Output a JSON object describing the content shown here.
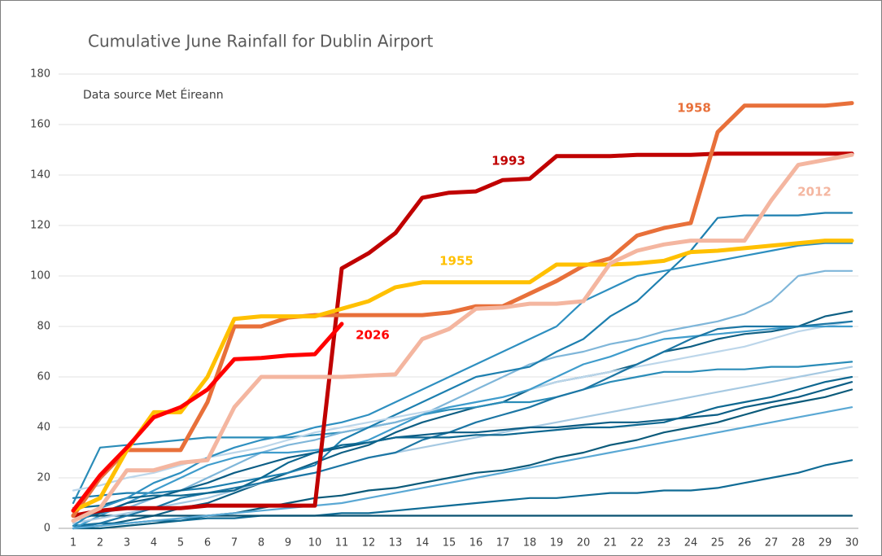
{
  "chart_data": {
    "type": "line",
    "title": "Cumulative June Rainfall for Dublin Airport",
    "annotation": "Data source Met Éireann",
    "x": [
      1,
      2,
      3,
      4,
      5,
      6,
      7,
      8,
      9,
      10,
      11,
      12,
      13,
      14,
      15,
      16,
      17,
      18,
      19,
      20,
      21,
      22,
      23,
      24,
      25,
      26,
      27,
      28,
      29,
      30
    ],
    "xlim": [
      1,
      30
    ],
    "ylim": [
      0,
      180
    ],
    "yticks": [
      0,
      20,
      40,
      60,
      80,
      100,
      120,
      140,
      160,
      180
    ],
    "grid": true,
    "series": [
      {
        "color": "#0e5f84",
        "values": [
          0,
          1,
          3,
          5,
          8,
          10,
          14,
          18,
          22,
          26,
          30,
          33,
          38,
          42,
          45,
          48,
          50,
          55,
          58,
          60,
          62,
          65,
          70,
          72,
          75,
          77,
          78,
          80,
          84,
          86
        ]
      },
      {
        "color": "#2a8cb8",
        "values": [
          10,
          32,
          33,
          34,
          35,
          36,
          36,
          36,
          36,
          37,
          38,
          40,
          42,
          45,
          47,
          48,
          50,
          50,
          52,
          55,
          58,
          60,
          62,
          62,
          63,
          63,
          64,
          64,
          65,
          66
        ]
      },
      {
        "color": "#7fb6d9",
        "values": [
          5,
          6,
          8,
          12,
          15,
          20,
          25,
          30,
          33,
          35,
          38,
          40,
          42,
          45,
          50,
          55,
          60,
          65,
          68,
          70,
          73,
          75,
          78,
          80,
          82,
          85,
          90,
          100,
          102,
          102
        ]
      },
      {
        "color": "#0a5a7a",
        "values": [
          0,
          0,
          1,
          2,
          3,
          5,
          6,
          8,
          10,
          12,
          13,
          15,
          16,
          18,
          20,
          22,
          23,
          25,
          28,
          30,
          33,
          35,
          38,
          40,
          42,
          45,
          48,
          50,
          52,
          55
        ]
      },
      {
        "color": "#1d7faf",
        "values": [
          12,
          13,
          14,
          14,
          15,
          16,
          18,
          20,
          22,
          25,
          35,
          40,
          45,
          50,
          55,
          60,
          62,
          64,
          70,
          75,
          84,
          90,
          100,
          110,
          123,
          124,
          124,
          124,
          125,
          125
        ]
      },
      {
        "color": "#bcd6ea",
        "values": [
          15,
          17,
          20,
          22,
          25,
          28,
          30,
          32,
          35,
          38,
          40,
          42,
          44,
          46,
          48,
          50,
          52,
          55,
          58,
          60,
          62,
          64,
          66,
          68,
          70,
          72,
          75,
          78,
          80,
          82
        ]
      },
      {
        "color": "#0f6b95",
        "values": [
          1,
          2,
          2,
          3,
          3,
          4,
          4,
          5,
          5,
          5,
          6,
          6,
          7,
          8,
          9,
          10,
          11,
          12,
          12,
          13,
          14,
          14,
          15,
          15,
          16,
          18,
          20,
          22,
          25,
          27
        ]
      },
      {
        "color": "#3f9ccc",
        "values": [
          0,
          5,
          10,
          15,
          20,
          25,
          28,
          30,
          30,
          31,
          32,
          35,
          40,
          45,
          48,
          50,
          52,
          55,
          60,
          65,
          68,
          72,
          75,
          76,
          77,
          78,
          79,
          80,
          80,
          80
        ]
      },
      {
        "color": "#085070",
        "values": [
          5,
          5,
          5,
          5,
          5,
          5,
          5,
          5,
          5,
          5,
          5,
          5,
          5,
          5,
          5,
          5,
          5,
          5,
          5,
          5,
          5,
          5,
          5,
          5,
          5,
          5,
          5,
          5,
          5,
          5
        ]
      },
      {
        "color": "#a6c9e2",
        "values": [
          2,
          4,
          6,
          8,
          10,
          12,
          15,
          18,
          20,
          22,
          25,
          28,
          30,
          32,
          34,
          36,
          38,
          40,
          42,
          44,
          46,
          48,
          50,
          52,
          54,
          56,
          58,
          60,
          62,
          64
        ]
      },
      {
        "color": "#1c76a4",
        "values": [
          0,
          2,
          5,
          8,
          12,
          14,
          16,
          18,
          20,
          22,
          25,
          28,
          30,
          35,
          38,
          42,
          45,
          48,
          52,
          55,
          60,
          65,
          70,
          75,
          79,
          80,
          80,
          80,
          81,
          82
        ]
      },
      {
        "color": "#0b5d85",
        "values": [
          3,
          6,
          10,
          12,
          15,
          18,
          22,
          25,
          28,
          30,
          32,
          34,
          36,
          37,
          38,
          38,
          39,
          40,
          40,
          41,
          42,
          42,
          43,
          44,
          45,
          48,
          50,
          52,
          55,
          58
        ]
      },
      {
        "color": "#5aa8d4",
        "values": [
          0,
          1,
          2,
          3,
          4,
          5,
          6,
          7,
          8,
          9,
          10,
          12,
          14,
          16,
          18,
          20,
          22,
          24,
          26,
          28,
          30,
          32,
          34,
          36,
          38,
          40,
          42,
          44,
          46,
          48
        ]
      },
      {
        "color": "#0d6790",
        "values": [
          8,
          9,
          12,
          13,
          13,
          14,
          15,
          20,
          26,
          30,
          33,
          34,
          36,
          36,
          36,
          37,
          37,
          38,
          39,
          40,
          40,
          41,
          42,
          45,
          48,
          50,
          52,
          55,
          58,
          60
        ]
      },
      {
        "color": "#2e8fc0",
        "values": [
          1,
          8,
          12,
          18,
          22,
          28,
          32,
          35,
          37,
          40,
          42,
          45,
          50,
          55,
          60,
          65,
          70,
          75,
          80,
          90,
          95,
          100,
          102,
          104,
          106,
          108,
          110,
          112,
          113,
          113
        ]
      },
      {
        "name": "1993",
        "color": "#c00000",
        "values": [
          5,
          7,
          8,
          8,
          8,
          9,
          9,
          9,
          9,
          9,
          103,
          109,
          117,
          131,
          133,
          133.5,
          138,
          138.5,
          147.5,
          147.5,
          147.5,
          148,
          148,
          148,
          148.5,
          148.5,
          148.5,
          148.5,
          148.5,
          148.5
        ]
      },
      {
        "name": "1958",
        "color": "#e8703a",
        "values": [
          5,
          20,
          31,
          31,
          31,
          50,
          80,
          80,
          83.5,
          84.5,
          84.5,
          84.5,
          84.5,
          84.5,
          85.5,
          88,
          88,
          93,
          98,
          104,
          107,
          116,
          119,
          121,
          157,
          167.5,
          167.5,
          167.5,
          167.5,
          168.5
        ]
      },
      {
        "name": "1955",
        "color": "#ffc000",
        "values": [
          7,
          12,
          31,
          46,
          46,
          60,
          83,
          84,
          84,
          84,
          87,
          90,
          95.5,
          97.5,
          97.5,
          97.5,
          97.5,
          97.5,
          104.5,
          104.5,
          104.5,
          105,
          106,
          109.5,
          110,
          111,
          112,
          113,
          114,
          114
        ]
      },
      {
        "name": "2012",
        "color": "#f4b6a0",
        "values": [
          3,
          8,
          23,
          23,
          26,
          27,
          48,
          60,
          60,
          60,
          60,
          60.5,
          61,
          75,
          79,
          87,
          87.5,
          89,
          89,
          90,
          105,
          110,
          112.5,
          114,
          114,
          114,
          130,
          144,
          146,
          148
        ]
      },
      {
        "name": "2026",
        "color": "#ff0000",
        "values": [
          7,
          21,
          32,
          44,
          48,
          55,
          67,
          67.5,
          68.5,
          69,
          81,
          null,
          null,
          null,
          null,
          null,
          null,
          null,
          null,
          null,
          null,
          null,
          null,
          null,
          null,
          null,
          null,
          null,
          null,
          null
        ]
      }
    ]
  }
}
